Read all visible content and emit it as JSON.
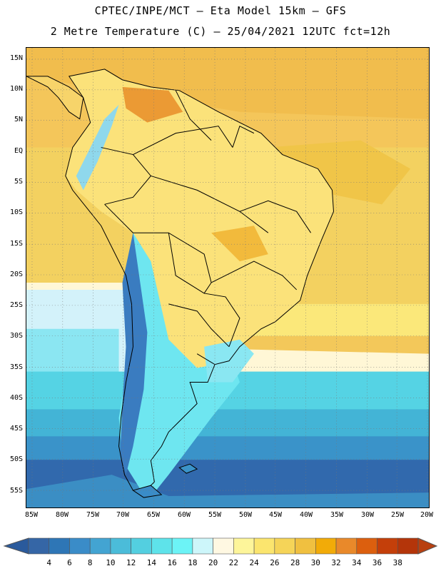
{
  "header": {
    "title_line1": "CPTEC/INPE/MCT –  Eta Model 15km – GFS",
    "title_line2": "2 Metre Temperature (C) – 25/04/2021 12UTC fct=12h"
  },
  "map": {
    "lat_labels": [
      "15N",
      "10N",
      "5N",
      "EQ",
      "5S",
      "10S",
      "15S",
      "20S",
      "25S",
      "30S",
      "35S",
      "40S",
      "45S",
      "50S",
      "55S"
    ],
    "lon_labels": [
      "85W",
      "80W",
      "75W",
      "70W",
      "65W",
      "60W",
      "55W",
      "50W",
      "45W",
      "40W",
      "35W",
      "30W",
      "25W",
      "20W"
    ],
    "grid": "dotted"
  },
  "colorbar": {
    "labels": [
      "4",
      "6",
      "8",
      "10",
      "12",
      "14",
      "16",
      "18",
      "20",
      "22",
      "24",
      "26",
      "28",
      "30",
      "32",
      "34",
      "36",
      "38"
    ],
    "colors": [
      "#3566a6",
      "#2e76b6",
      "#3a8cc8",
      "#43a4d2",
      "#4bbcd9",
      "#53cfe0",
      "#5ee3ea",
      "#6cf3f6",
      "#cdf6fa",
      "#fff8e2",
      "#fdf59a",
      "#fbe56e",
      "#f5d458",
      "#f0c040",
      "#f2ab08",
      "#e9892a",
      "#dc5f0e",
      "#c43f0a",
      "#b4350a"
    ],
    "low_color": "#2a5a9c",
    "high_color": "#b84010"
  }
}
